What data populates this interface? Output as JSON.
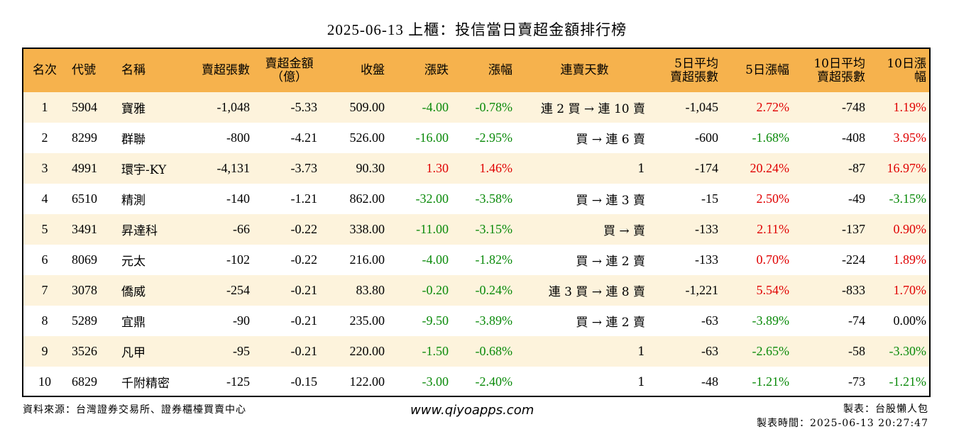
{
  "title": "2025-06-13 上櫃：投信當日賣超金額排行榜",
  "headers": {
    "rank": "名次",
    "code": "代號",
    "name": "名稱",
    "sell_shares": "賣超張數",
    "sell_amount_l1": "賣超金額",
    "sell_amount_l2": "（億）",
    "close": "收盤",
    "change": "漲跌",
    "change_pct": "漲幅",
    "streak": "連賣天數",
    "avg5_l1": "5日平均",
    "avg5_l2": "賣超張數",
    "pct5": "5日漲幅",
    "avg10_l1": "10日平均",
    "avg10_l2": "賣超張數",
    "pct10": "10日漲幅"
  },
  "rows": [
    {
      "rank": "1",
      "code": "5904",
      "name": "寶雅",
      "sell_shares": "-1,048",
      "sell_amount": "-5.33",
      "close": "509.00",
      "change": "-4.00",
      "change_pct": "-0.78%",
      "streak": "連 2 買 → 連 10 賣",
      "avg5": "-1,045",
      "pct5": "2.72%",
      "avg10": "-748",
      "pct10": "1.19%"
    },
    {
      "rank": "2",
      "code": "8299",
      "name": "群聯",
      "sell_shares": "-800",
      "sell_amount": "-4.21",
      "close": "526.00",
      "change": "-16.00",
      "change_pct": "-2.95%",
      "streak": "買 → 連 6 賣",
      "avg5": "-600",
      "pct5": "-1.68%",
      "avg10": "-408",
      "pct10": "3.95%"
    },
    {
      "rank": "3",
      "code": "4991",
      "name": "環宇-KY",
      "sell_shares": "-4,131",
      "sell_amount": "-3.73",
      "close": "90.30",
      "change": "1.30",
      "change_pct": "1.46%",
      "streak": "1",
      "avg5": "-174",
      "pct5": "20.24%",
      "avg10": "-87",
      "pct10": "16.97%"
    },
    {
      "rank": "4",
      "code": "6510",
      "name": "精測",
      "sell_shares": "-140",
      "sell_amount": "-1.21",
      "close": "862.00",
      "change": "-32.00",
      "change_pct": "-3.58%",
      "streak": "買 → 連 3 賣",
      "avg5": "-15",
      "pct5": "2.50%",
      "avg10": "-49",
      "pct10": "-3.15%"
    },
    {
      "rank": "5",
      "code": "3491",
      "name": "昇達科",
      "sell_shares": "-66",
      "sell_amount": "-0.22",
      "close": "338.00",
      "change": "-11.00",
      "change_pct": "-3.15%",
      "streak": "買 → 賣",
      "avg5": "-133",
      "pct5": "2.11%",
      "avg10": "-137",
      "pct10": "0.90%"
    },
    {
      "rank": "6",
      "code": "8069",
      "name": "元太",
      "sell_shares": "-102",
      "sell_amount": "-0.22",
      "close": "216.00",
      "change": "-4.00",
      "change_pct": "-1.82%",
      "streak": "買 → 連 2 賣",
      "avg5": "-133",
      "pct5": "0.70%",
      "avg10": "-224",
      "pct10": "1.89%"
    },
    {
      "rank": "7",
      "code": "3078",
      "name": "僑威",
      "sell_shares": "-254",
      "sell_amount": "-0.21",
      "close": "83.80",
      "change": "-0.20",
      "change_pct": "-0.24%",
      "streak": "連 3 買 → 連 8 賣",
      "avg5": "-1,221",
      "pct5": "5.54%",
      "avg10": "-833",
      "pct10": "1.70%"
    },
    {
      "rank": "8",
      "code": "5289",
      "name": "宜鼎",
      "sell_shares": "-90",
      "sell_amount": "-0.21",
      "close": "235.00",
      "change": "-9.50",
      "change_pct": "-3.89%",
      "streak": "買 → 連 2 賣",
      "avg5": "-63",
      "pct5": "-3.89%",
      "avg10": "-74",
      "pct10": "0.00%"
    },
    {
      "rank": "9",
      "code": "3526",
      "name": "凡甲",
      "sell_shares": "-95",
      "sell_amount": "-0.21",
      "close": "220.00",
      "change": "-1.50",
      "change_pct": "-0.68%",
      "streak": "1",
      "avg5": "-63",
      "pct5": "-2.65%",
      "avg10": "-58",
      "pct10": "-3.30%"
    },
    {
      "rank": "10",
      "code": "6829",
      "name": "千附精密",
      "sell_shares": "-125",
      "sell_amount": "-0.15",
      "close": "122.00",
      "change": "-3.00",
      "change_pct": "-2.40%",
      "streak": "1",
      "avg5": "-48",
      "pct5": "-1.21%",
      "avg10": "-73",
      "pct10": "-1.21%"
    }
  ],
  "colors": {
    "header_bg": "#f6b24d",
    "row_alt_bg": "#fdf3dc",
    "up": "#e00000",
    "down": "#0a8a0a"
  },
  "footer": {
    "source": "資料來源：台灣證券交易所、證券櫃檯買賣中心",
    "website": "www.qiyoapps.com",
    "maker": "製表：台股懶人包",
    "made_time": "製表時間：2025-06-13 20:27:47"
  }
}
